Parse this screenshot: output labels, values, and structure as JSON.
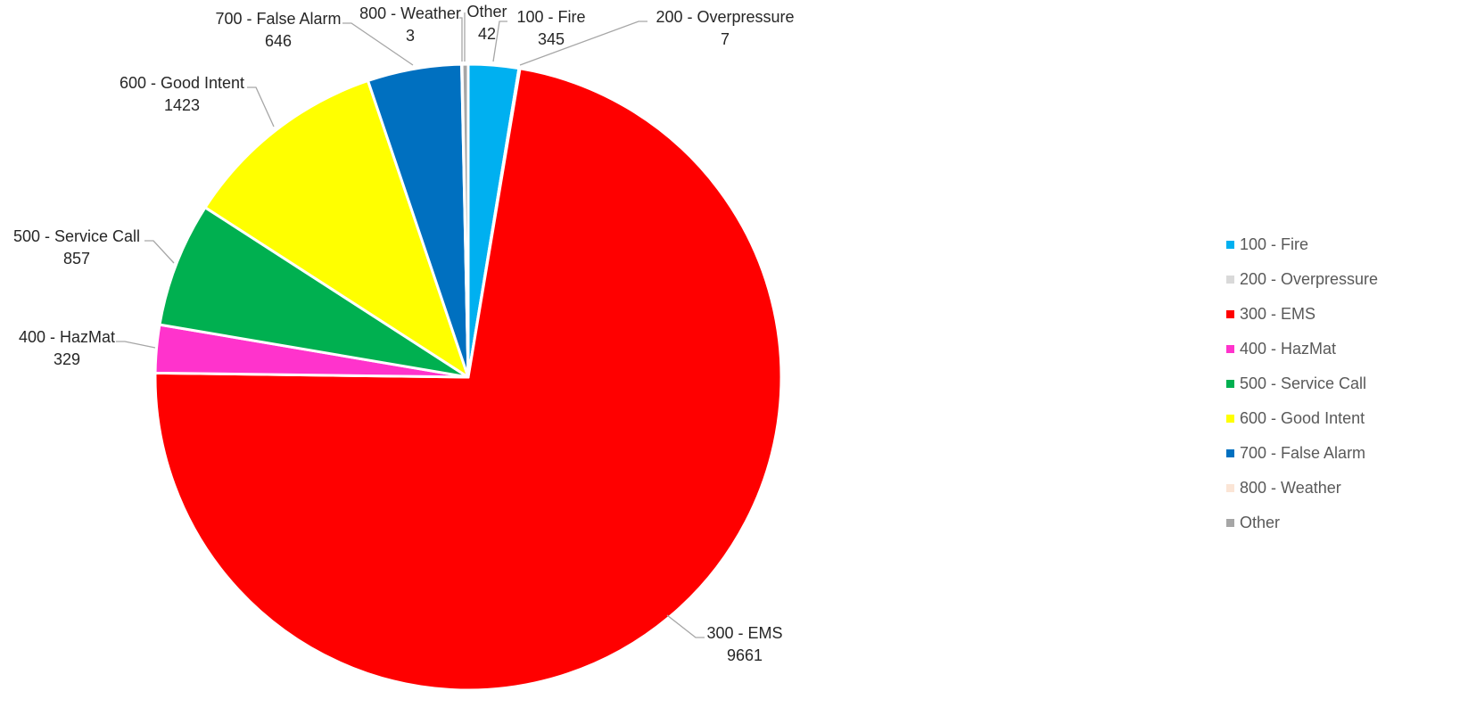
{
  "chart_data": {
    "type": "pie",
    "title": "",
    "legend": "right",
    "slices": [
      {
        "name": "100 - Fire",
        "value": 345,
        "color": "#00b0f0",
        "label_value": "345"
      },
      {
        "name": "200 - Overpressure",
        "value": 7,
        "color": "#d9d9d9",
        "label_value": "7"
      },
      {
        "name": "300 - EMS",
        "value": 9661,
        "color": "#ff0000",
        "label_value": "9661"
      },
      {
        "name": "400 - HazMat",
        "value": 329,
        "color": "#ff33cc",
        "label_value": "329"
      },
      {
        "name": "500 - Service Call",
        "value": 857,
        "color": "#00b050",
        "label_value": "857"
      },
      {
        "name": "600 - Good Intent",
        "value": 1423,
        "color": "#ffff00",
        "label_value": "1423"
      },
      {
        "name": "700 - False Alarm",
        "value": 646,
        "color": "#0070c0",
        "label_value": "646"
      },
      {
        "name": "800 - Weather",
        "value": 3,
        "color": "#fbe5d6",
        "label_value": "3"
      },
      {
        "name": "Other",
        "value": 42,
        "color": "#a6a6a6",
        "label_value": "42"
      }
    ]
  }
}
